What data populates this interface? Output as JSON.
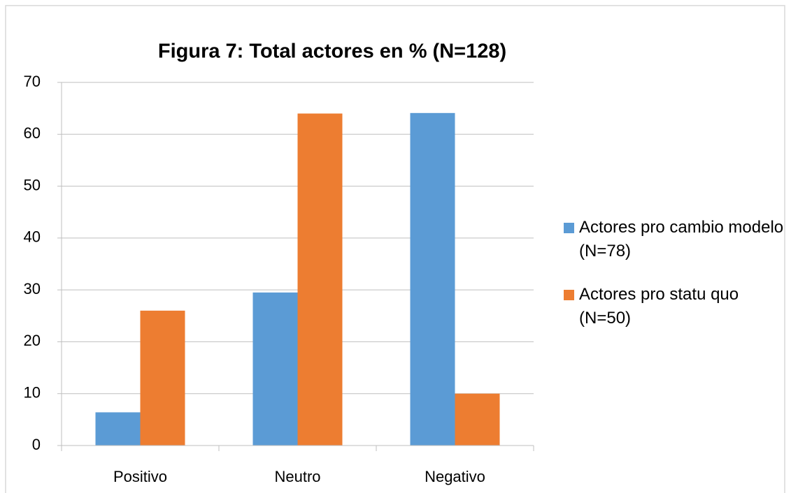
{
  "chart_data": {
    "type": "bar",
    "title": "Figura 7: Total actores en % (N=128)",
    "categories": [
      "Positivo",
      "Neutro",
      "Negativo"
    ],
    "series": [
      {
        "name": "Actores pro cambio modelo (N=78)",
        "color": "#5b9bd5",
        "values": [
          6.4,
          29.5,
          64.1
        ]
      },
      {
        "name": "Actores pro statu quo (N=50)",
        "color": "#ed7d31",
        "values": [
          26,
          64,
          10
        ]
      }
    ],
    "ylim": [
      0,
      70
    ],
    "yticks": [
      0,
      10,
      20,
      30,
      40,
      50,
      60,
      70
    ],
    "grid": true,
    "legend": "right"
  }
}
